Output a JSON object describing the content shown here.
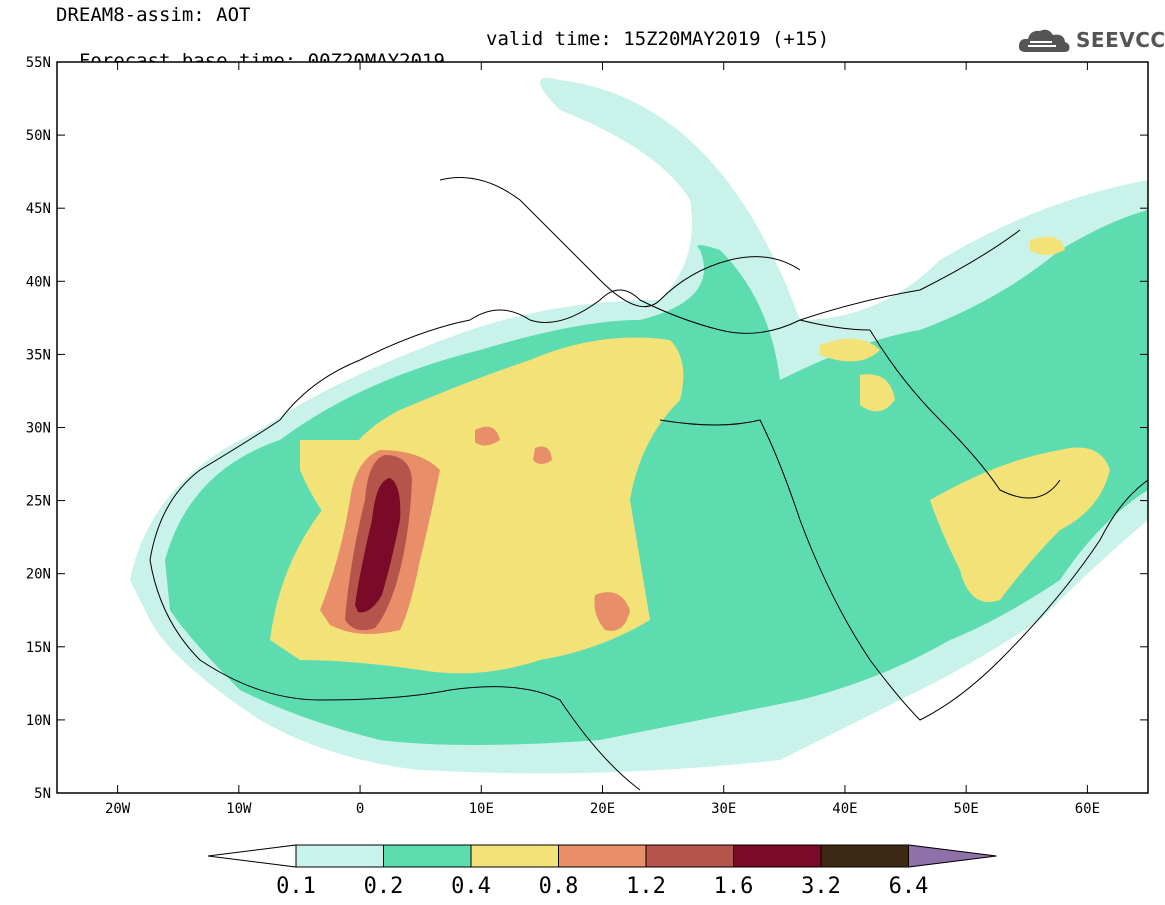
{
  "header": {
    "line1": "DREAM8-assim: AOT",
    "line2_base": "Forecast base time: 00Z20MAY2019",
    "line2_valid": "valid time: 15Z20MAY2019 (+15)",
    "logo_text": "SEEVCCC"
  },
  "map": {
    "lat_ticks": [
      "55N",
      "50N",
      "45N",
      "40N",
      "35N",
      "30N",
      "25N",
      "20N",
      "15N",
      "10N",
      "5N"
    ],
    "lon_ticks": [
      "20W",
      "10W",
      "0",
      "10E",
      "20E",
      "30E",
      "40E",
      "50E",
      "60E"
    ],
    "lat_range": [
      5,
      55
    ],
    "lon_range": [
      -25,
      65
    ]
  },
  "colorbar": {
    "labels": [
      "0.1",
      "0.2",
      "0.4",
      "0.8",
      "1.2",
      "1.6",
      "3.2",
      "6.4"
    ],
    "colors": [
      "#c8f2ea",
      "#5ddcb0",
      "#f2e278",
      "#e88e68",
      "#b4544a",
      "#7a0a28",
      "#3c2814",
      "#9070a8"
    ]
  }
}
